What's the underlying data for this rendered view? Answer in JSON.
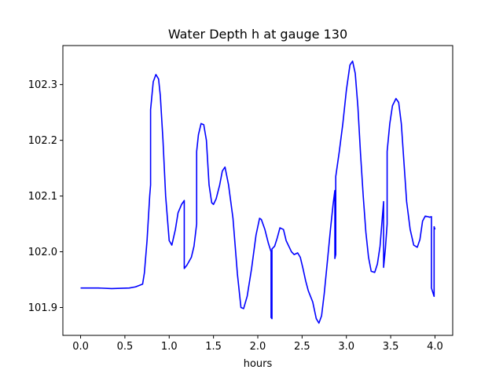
{
  "chart_data": {
    "type": "line",
    "title": "Water Depth h at gauge 130",
    "xlabel": "hours",
    "ylabel": "",
    "xlim": [
      -0.2,
      4.2
    ],
    "ylim": [
      101.85,
      102.37
    ],
    "xticks": [
      0.0,
      0.5,
      1.0,
      1.5,
      2.0,
      2.5,
      3.0,
      3.5,
      4.0
    ],
    "xtick_labels": [
      "0.0",
      "0.5",
      "1.0",
      "1.5",
      "2.0",
      "2.5",
      "3.0",
      "3.5",
      "4.0"
    ],
    "yticks": [
      101.9,
      102.0,
      102.1,
      102.2,
      102.3
    ],
    "ytick_labels": [
      "101.9",
      "102.0",
      "102.1",
      "102.2",
      "102.3"
    ],
    "grid": false,
    "series": [
      {
        "color": "#0000ff",
        "x": [
          0.0,
          0.2,
          0.35,
          0.55,
          0.62,
          0.7,
          0.72,
          0.75,
          0.78,
          0.79,
          0.79,
          0.82,
          0.85,
          0.88,
          0.9,
          0.93,
          0.96,
          1.0,
          1.03,
          1.07,
          1.1,
          1.14,
          1.17,
          1.17,
          1.2,
          1.25,
          1.28,
          1.31,
          1.31,
          1.33,
          1.36,
          1.39,
          1.42,
          1.45,
          1.48,
          1.5,
          1.53,
          1.57,
          1.6,
          1.63,
          1.67,
          1.72,
          1.77,
          1.81,
          1.84,
          1.88,
          1.93,
          1.98,
          2.02,
          2.04,
          2.08,
          2.12,
          2.15,
          2.15,
          2.16,
          2.16,
          2.19,
          2.22,
          2.25,
          2.29,
          2.32,
          2.35,
          2.38,
          2.41,
          2.45,
          2.48,
          2.51,
          2.54,
          2.57,
          2.62,
          2.66,
          2.69,
          2.72,
          2.75,
          2.79,
          2.82,
          2.85,
          2.87,
          2.87,
          2.88,
          2.88,
          2.92,
          2.96,
          3.0,
          3.04,
          3.07,
          3.1,
          3.13,
          3.16,
          3.19,
          3.22,
          3.25,
          3.28,
          3.32,
          3.35,
          3.38,
          3.42,
          3.42,
          3.44,
          3.46,
          3.46,
          3.49,
          3.52,
          3.56,
          3.59,
          3.62,
          3.65,
          3.68,
          3.72,
          3.76,
          3.8,
          3.83,
          3.86,
          3.89,
          3.92,
          3.94,
          3.96,
          3.96,
          3.99,
          3.99,
          4.0
        ],
        "y": [
          101.935,
          101.935,
          101.934,
          101.935,
          101.937,
          101.942,
          101.962,
          102.02,
          102.1,
          102.12,
          102.255,
          102.305,
          102.318,
          102.31,
          102.28,
          102.2,
          102.1,
          102.02,
          102.012,
          102.04,
          102.07,
          102.085,
          102.092,
          101.97,
          101.976,
          101.99,
          102.01,
          102.05,
          102.18,
          102.21,
          102.23,
          102.228,
          102.2,
          102.12,
          102.088,
          102.085,
          102.095,
          102.12,
          102.145,
          102.152,
          102.12,
          102.06,
          101.96,
          101.9,
          101.898,
          101.92,
          101.97,
          102.03,
          102.06,
          102.058,
          102.04,
          102.015,
          102.0,
          101.882,
          101.88,
          102.005,
          102.01,
          102.025,
          102.043,
          102.04,
          102.02,
          102.01,
          102.0,
          101.995,
          101.998,
          101.99,
          101.97,
          101.948,
          101.93,
          101.91,
          101.88,
          101.872,
          101.885,
          101.925,
          101.99,
          102.04,
          102.085,
          102.11,
          101.988,
          101.995,
          102.135,
          102.18,
          102.23,
          102.29,
          102.335,
          102.342,
          102.32,
          102.26,
          102.175,
          102.1,
          102.035,
          101.99,
          101.965,
          101.963,
          101.978,
          102.01,
          102.09,
          101.972,
          102.005,
          102.05,
          102.18,
          102.23,
          102.262,
          102.275,
          102.268,
          102.23,
          102.16,
          102.09,
          102.04,
          102.012,
          102.008,
          102.022,
          102.055,
          102.064,
          102.063,
          102.062,
          102.063,
          101.935,
          101.92,
          102.045,
          102.04
        ]
      }
    ]
  }
}
